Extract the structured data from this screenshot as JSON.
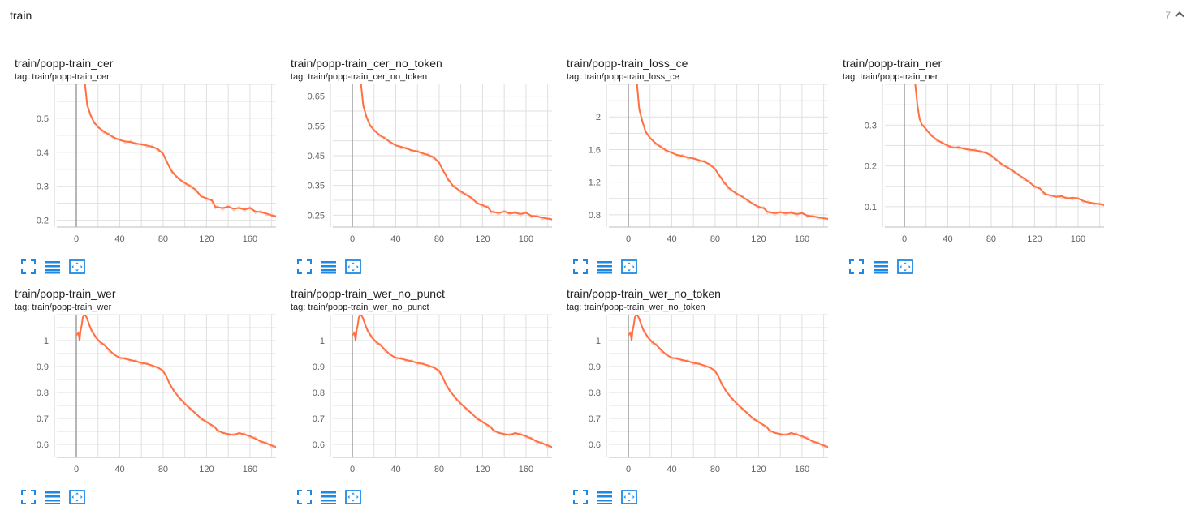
{
  "group": {
    "title": "train",
    "count": "7"
  },
  "colors": {
    "line": "#ff7043",
    "raw": "#ffccbc",
    "grid": "#e0e0e0",
    "zero": "#9e9e9e",
    "tool": "#1e88e5"
  },
  "icons": {
    "collapse": "chevron-up-icon",
    "fullscreen": "fullscreen-icon",
    "data": "toggle-y-log-icon",
    "fit": "fit-domain-icon"
  },
  "cards": [
    {
      "title": "train/popp-train_cer",
      "tag": "tag: train/popp-train_cer",
      "chart_data": {
        "type": "line",
        "xlim": [
          -20,
          190
        ],
        "ylim": [
          0.18,
          0.6
        ],
        "xticks": [
          0,
          40,
          80,
          120,
          160
        ],
        "yticks": [
          0.2,
          0.3,
          0.4,
          0.5
        ],
        "ytick_labels": [
          "0.2",
          "0.3",
          "0.4",
          "0.5"
        ],
        "series": [
          {
            "x": [
              8,
              10,
              13,
              16,
              20,
              25,
              30,
              35,
              40,
              45,
              50,
              55,
              60,
              65,
              70,
              75,
              80,
              83,
              86,
              88,
              90,
              92,
              95,
              100,
              105,
              110,
              115,
              120,
              125,
              128,
              130,
              135,
              140,
              145,
              150,
              155,
              160,
              165,
              170,
              175,
              180,
              185,
              190
            ],
            "y": [
              0.6,
              0.54,
              0.51,
              0.49,
              0.474,
              0.462,
              0.452,
              0.443,
              0.436,
              0.432,
              0.43,
              0.426,
              0.423,
              0.42,
              0.416,
              0.41,
              0.395,
              0.375,
              0.355,
              0.345,
              0.336,
              0.33,
              0.32,
              0.31,
              0.3,
              0.29,
              0.27,
              0.265,
              0.258,
              0.24,
              0.238,
              0.236,
              0.24,
              0.234,
              0.236,
              0.232,
              0.236,
              0.226,
              0.224,
              0.22,
              0.214,
              0.212,
              0.207
            ]
          }
        ]
      }
    },
    {
      "title": "train/popp-train_cer_no_token",
      "tag": "tag: train/popp-train_cer_no_token",
      "chart_data": {
        "type": "line",
        "xlim": [
          -20,
          190
        ],
        "ylim": [
          0.21,
          0.69
        ],
        "xticks": [
          0,
          40,
          80,
          120,
          160
        ],
        "yticks": [
          0.25,
          0.35,
          0.45,
          0.55,
          0.65
        ],
        "ytick_labels": [
          "0.25",
          "0.35",
          "0.45",
          "0.55",
          "0.65"
        ],
        "series": [
          {
            "x": [
              8,
              10,
              13,
              16,
              20,
              25,
              30,
              35,
              40,
              45,
              50,
              55,
              60,
              65,
              70,
              75,
              80,
              83,
              86,
              88,
              90,
              92,
              95,
              100,
              105,
              110,
              115,
              120,
              125,
              128,
              130,
              135,
              140,
              145,
              150,
              155,
              160,
              165,
              170,
              175,
              180,
              185,
              190
            ],
            "y": [
              0.69,
              0.62,
              0.58,
              0.555,
              0.535,
              0.52,
              0.508,
              0.496,
              0.484,
              0.48,
              0.474,
              0.468,
              0.464,
              0.458,
              0.452,
              0.445,
              0.426,
              0.405,
              0.385,
              0.372,
              0.362,
              0.352,
              0.342,
              0.33,
              0.318,
              0.308,
              0.29,
              0.284,
              0.276,
              0.262,
              0.26,
              0.258,
              0.262,
              0.256,
              0.258,
              0.254,
              0.258,
              0.248,
              0.246,
              0.242,
              0.238,
              0.236,
              0.232
            ]
          }
        ]
      }
    },
    {
      "title": "train/popp-train_loss_ce",
      "tag": "tag: train/popp-train_loss_ce",
      "chart_data": {
        "type": "line",
        "xlim": [
          -20,
          190
        ],
        "ylim": [
          0.65,
          2.4
        ],
        "xticks": [
          0,
          40,
          80,
          120,
          160
        ],
        "yticks": [
          0.8,
          1.2,
          1.6,
          2
        ],
        "ytick_labels": [
          "0.8",
          "1.2",
          "1.6",
          "2"
        ],
        "series": [
          {
            "x": [
              8,
              10,
              13,
              16,
              20,
              25,
              30,
              35,
              40,
              45,
              50,
              55,
              60,
              65,
              70,
              75,
              80,
              83,
              86,
              88,
              90,
              92,
              95,
              100,
              105,
              110,
              115,
              120,
              125,
              128,
              130,
              135,
              140,
              145,
              150,
              155,
              160,
              165,
              170,
              175,
              180,
              185,
              190
            ],
            "y": [
              2.4,
              2.1,
              1.94,
              1.82,
              1.74,
              1.68,
              1.63,
              1.59,
              1.56,
              1.535,
              1.52,
              1.505,
              1.49,
              1.47,
              1.45,
              1.42,
              1.36,
              1.3,
              1.24,
              1.2,
              1.17,
              1.14,
              1.1,
              1.06,
              1.02,
              0.98,
              0.93,
              0.9,
              0.88,
              0.84,
              0.83,
              0.82,
              0.83,
              0.82,
              0.825,
              0.81,
              0.82,
              0.79,
              0.78,
              0.77,
              0.755,
              0.75,
              0.735
            ]
          }
        ]
      }
    },
    {
      "title": "train/popp-train_ner",
      "tag": "tag: train/popp-train_ner",
      "chart_data": {
        "type": "line",
        "xlim": [
          -20,
          190
        ],
        "ylim": [
          0.05,
          0.4
        ],
        "xticks": [
          0,
          40,
          80,
          120,
          160
        ],
        "yticks": [
          0.1,
          0.2,
          0.3
        ],
        "ytick_labels": [
          "0.1",
          "0.2",
          "0.3"
        ],
        "series": [
          {
            "x": [
              10,
              12,
              14,
              16,
              18,
              20,
              25,
              30,
              35,
              40,
              45,
              50,
              55,
              60,
              65,
              70,
              75,
              80,
              85,
              90,
              95,
              100,
              105,
              110,
              115,
              120,
              125,
              128,
              130,
              135,
              140,
              145,
              150,
              155,
              160,
              165,
              170,
              175,
              180,
              185,
              190
            ],
            "y": [
              0.4,
              0.35,
              0.315,
              0.302,
              0.296,
              0.29,
              0.274,
              0.264,
              0.256,
              0.25,
              0.244,
              0.246,
              0.242,
              0.24,
              0.238,
              0.236,
              0.232,
              0.226,
              0.214,
              0.204,
              0.196,
              0.188,
              0.178,
              0.17,
              0.16,
              0.15,
              0.144,
              0.136,
              0.13,
              0.128,
              0.124,
              0.126,
              0.12,
              0.122,
              0.12,
              0.114,
              0.11,
              0.108,
              0.106,
              0.104,
              0.1
            ]
          }
        ]
      }
    },
    {
      "title": "train/popp-train_wer",
      "tag": "tag: train/popp-train_wer",
      "chart_data": {
        "type": "line",
        "xlim": [
          -20,
          190
        ],
        "ylim": [
          0.55,
          1.1
        ],
        "xticks": [
          0,
          40,
          80,
          120,
          160
        ],
        "yticks": [
          0.6,
          0.7,
          0.8,
          0.9,
          1
        ],
        "ytick_labels": [
          "0.6",
          "0.7",
          "0.8",
          "0.9",
          "1"
        ],
        "series": [
          {
            "x": [
              0,
              2,
              3,
              4,
              5,
              6,
              8,
              10,
              12,
              14,
              18,
              22,
              26,
              30,
              35,
              40,
              45,
              50,
              55,
              60,
              65,
              70,
              75,
              80,
              83,
              86,
              90,
              95,
              100,
              105,
              110,
              115,
              120,
              125,
              128,
              130,
              135,
              140,
              145,
              150,
              155,
              160,
              165,
              170,
              175,
              180,
              185,
              190
            ],
            "y": [
              1.02,
              1.03,
              1.0,
              1.04,
              1.06,
              1.09,
              1.1,
              1.085,
              1.06,
              1.04,
              1.012,
              0.995,
              0.982,
              0.965,
              0.945,
              0.934,
              0.93,
              0.925,
              0.92,
              0.914,
              0.91,
              0.904,
              0.896,
              0.884,
              0.86,
              0.834,
              0.805,
              0.78,
              0.756,
              0.738,
              0.718,
              0.7,
              0.686,
              0.674,
              0.664,
              0.654,
              0.644,
              0.64,
              0.636,
              0.644,
              0.638,
              0.632,
              0.622,
              0.612,
              0.604,
              0.596,
              0.588,
              0.582
            ]
          }
        ]
      }
    },
    {
      "title": "train/popp-train_wer_no_punct",
      "tag": "tag: train/popp-train_wer_no_punct",
      "chart_data": {
        "type": "line",
        "xlim": [
          -20,
          190
        ],
        "ylim": [
          0.55,
          1.1
        ],
        "xticks": [
          0,
          40,
          80,
          120,
          160
        ],
        "yticks": [
          0.6,
          0.7,
          0.8,
          0.9,
          1
        ],
        "ytick_labels": [
          "0.6",
          "0.7",
          "0.8",
          "0.9",
          "1"
        ],
        "series": [
          {
            "x": [
              0,
              2,
              3,
              4,
              5,
              6,
              8,
              10,
              12,
              14,
              18,
              22,
              26,
              30,
              35,
              40,
              45,
              50,
              55,
              60,
              65,
              70,
              75,
              80,
              83,
              86,
              90,
              95,
              100,
              105,
              110,
              115,
              120,
              125,
              128,
              130,
              135,
              140,
              145,
              150,
              155,
              160,
              165,
              170,
              175,
              180,
              185,
              190
            ],
            "y": [
              1.02,
              1.03,
              1.0,
              1.04,
              1.06,
              1.09,
              1.1,
              1.085,
              1.06,
              1.04,
              1.012,
              0.995,
              0.982,
              0.965,
              0.945,
              0.934,
              0.93,
              0.925,
              0.92,
              0.914,
              0.91,
              0.904,
              0.896,
              0.884,
              0.86,
              0.834,
              0.805,
              0.78,
              0.756,
              0.738,
              0.718,
              0.7,
              0.686,
              0.674,
              0.664,
              0.654,
              0.644,
              0.64,
              0.636,
              0.644,
              0.638,
              0.632,
              0.622,
              0.612,
              0.604,
              0.596,
              0.588,
              0.582
            ]
          }
        ]
      }
    },
    {
      "title": "train/popp-train_wer_no_token",
      "tag": "tag: train/popp-train_wer_no_token",
      "chart_data": {
        "type": "line",
        "xlim": [
          -20,
          190
        ],
        "ylim": [
          0.55,
          1.1
        ],
        "xticks": [
          0,
          40,
          80,
          120,
          160
        ],
        "yticks": [
          0.6,
          0.7,
          0.8,
          0.9,
          1
        ],
        "ytick_labels": [
          "0.6",
          "0.7",
          "0.8",
          "0.9",
          "1"
        ],
        "series": [
          {
            "x": [
              0,
              2,
              3,
              4,
              5,
              6,
              8,
              10,
              12,
              14,
              18,
              22,
              26,
              30,
              35,
              40,
              45,
              50,
              55,
              60,
              65,
              70,
              75,
              80,
              83,
              86,
              90,
              95,
              100,
              105,
              110,
              115,
              120,
              125,
              128,
              130,
              135,
              140,
              145,
              150,
              155,
              160,
              165,
              170,
              175,
              180,
              185,
              190
            ],
            "y": [
              1.02,
              1.03,
              1.0,
              1.04,
              1.06,
              1.09,
              1.1,
              1.085,
              1.06,
              1.04,
              1.012,
              0.995,
              0.982,
              0.965,
              0.945,
              0.934,
              0.93,
              0.925,
              0.92,
              0.914,
              0.91,
              0.904,
              0.896,
              0.884,
              0.86,
              0.834,
              0.805,
              0.78,
              0.756,
              0.738,
              0.718,
              0.7,
              0.686,
              0.674,
              0.664,
              0.654,
              0.644,
              0.64,
              0.636,
              0.644,
              0.638,
              0.632,
              0.622,
              0.612,
              0.604,
              0.596,
              0.588,
              0.582
            ]
          }
        ]
      }
    }
  ]
}
